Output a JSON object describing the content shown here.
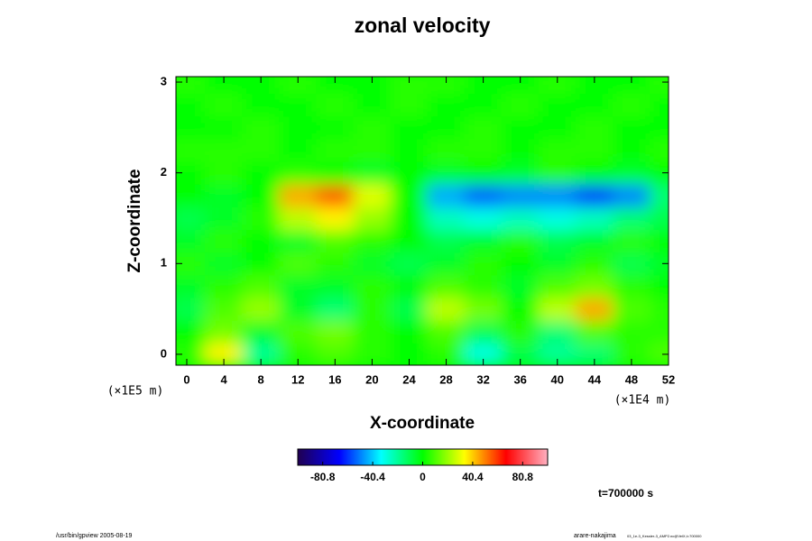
{
  "chart_data": {
    "type": "heatmap",
    "title": "zonal velocity",
    "x_label": "X-coordinate",
    "y_label": "Z-coordinate",
    "x_unit": "(×1E4 m)",
    "y_unit": "(×1E5 m)",
    "time_label": "t=700000 s",
    "footer_left": "/usr/bin/gpview 2005-08-19",
    "footer_right": "arare-nakajima",
    "footer_right_small": "03_1e-3_Kessler-3_AMP2.nc@VelX,t=700000",
    "xlim": [
      -1.17,
      52
    ],
    "xticks": [
      0,
      4,
      8,
      12,
      16,
      20,
      24,
      28,
      32,
      36,
      40,
      44,
      48,
      52
    ],
    "ylim": [
      -0.12,
      3.06
    ],
    "yticks": [
      0,
      1,
      2,
      3
    ],
    "clim": [
      -101,
      101
    ],
    "cticks": [
      -80.8,
      -40.4,
      0,
      40.4,
      80.8
    ],
    "colormap": [
      "#200050",
      "#0000ff",
      "#00ffff",
      "#00ff00",
      "#ffff00",
      "#ff0000",
      "#ffb0c0"
    ],
    "x": [
      0,
      4,
      8,
      12,
      16,
      20,
      24,
      28,
      32,
      36,
      40,
      44,
      48,
      52
    ],
    "y": [
      0,
      0.25,
      0.5,
      0.75,
      1,
      1.25,
      1.5,
      1.75,
      2,
      2.25,
      2.5,
      2.75,
      3
    ],
    "z": [
      [
        5,
        35,
        -20,
        5,
        10,
        5,
        0,
        5,
        -30,
        -10,
        -20,
        -15,
        5,
        10
      ],
      [
        0,
        15,
        -5,
        10,
        15,
        5,
        0,
        10,
        -10,
        5,
        -15,
        10,
        5,
        5
      ],
      [
        -10,
        10,
        20,
        -5,
        -15,
        5,
        -10,
        25,
        15,
        0,
        25,
        45,
        10,
        5
      ],
      [
        -5,
        5,
        10,
        -5,
        -5,
        5,
        0,
        10,
        5,
        -5,
        10,
        15,
        5,
        0
      ],
      [
        5,
        -5,
        0,
        10,
        5,
        -5,
        -10,
        -5,
        5,
        0,
        -5,
        5,
        -10,
        -5
      ],
      [
        -5,
        5,
        0,
        -5,
        10,
        5,
        0,
        -10,
        -5,
        5,
        -10,
        -5,
        5,
        0
      ],
      [
        -10,
        -5,
        5,
        25,
        35,
        20,
        0,
        -25,
        -30,
        -25,
        -30,
        -25,
        -15,
        -10
      ],
      [
        0,
        -5,
        0,
        45,
        55,
        30,
        0,
        -45,
        -55,
        -50,
        -50,
        -60,
        -50,
        -15
      ],
      [
        0,
        5,
        0,
        5,
        0,
        -5,
        0,
        -5,
        0,
        -5,
        5,
        0,
        -5,
        0
      ],
      [
        5,
        5,
        5,
        0,
        5,
        5,
        0,
        5,
        5,
        0,
        5,
        5,
        0,
        5
      ],
      [
        0,
        0,
        5,
        0,
        0,
        5,
        0,
        0,
        5,
        0,
        0,
        5,
        0,
        0
      ],
      [
        0,
        5,
        0,
        0,
        5,
        0,
        5,
        0,
        0,
        5,
        0,
        0,
        5,
        0
      ],
      [
        5,
        0,
        0,
        5,
        0,
        0,
        5,
        5,
        0,
        0,
        5,
        0,
        0,
        5
      ]
    ]
  }
}
